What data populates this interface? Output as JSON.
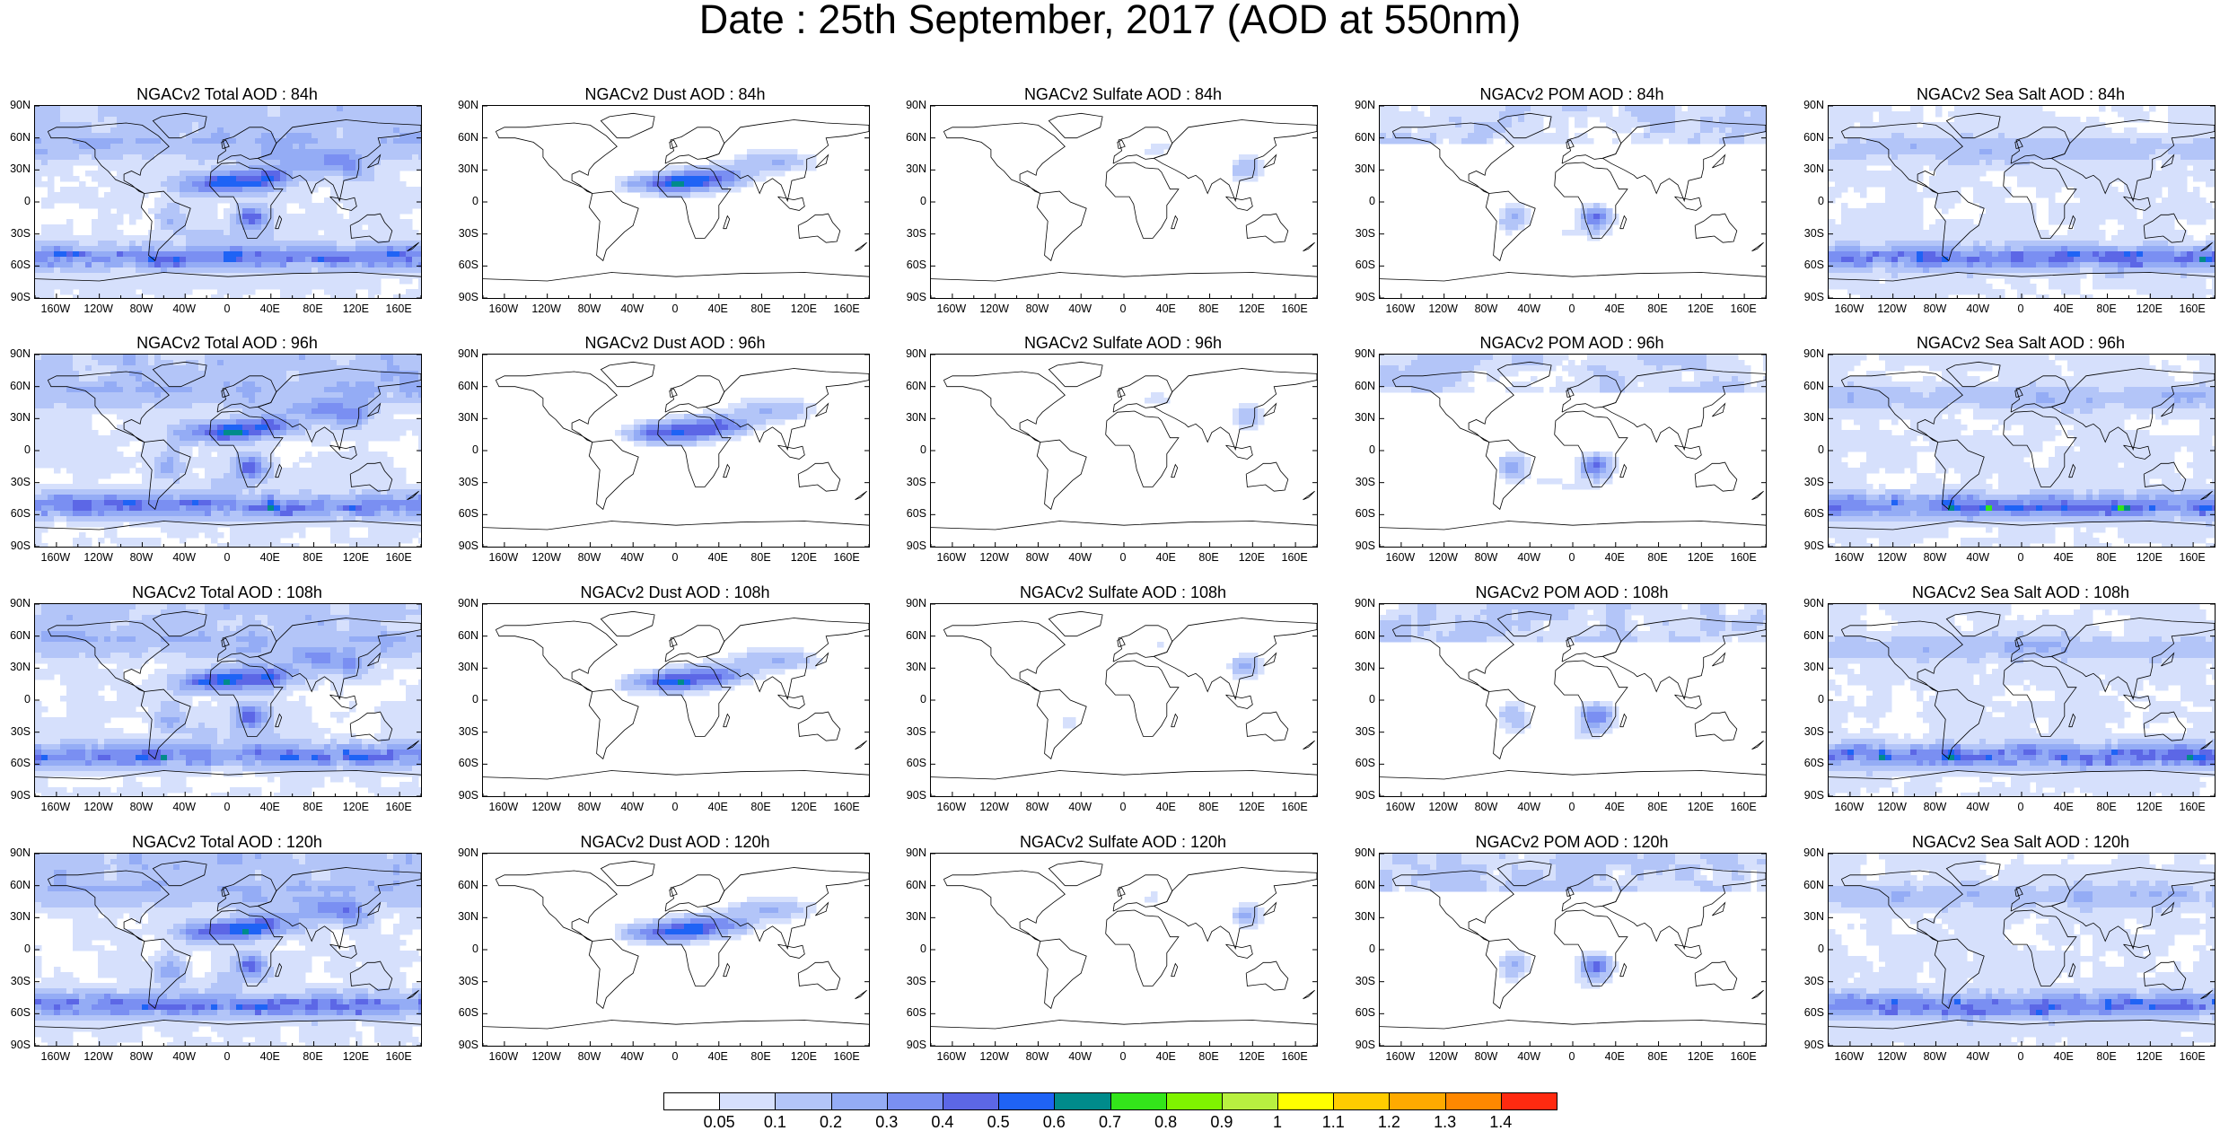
{
  "page": {
    "title": "Date : 25th September, 2017 (AOD at 550nm)"
  },
  "lat_ticks": [
    "90N",
    "60N",
    "30N",
    "0",
    "30S",
    "60S",
    "90S"
  ],
  "lon_ticks": [
    "160W",
    "120W",
    "80W",
    "40W",
    "0",
    "40E",
    "80E",
    "120E",
    "160E"
  ],
  "panels": [
    {
      "title": "NGACv2 Total AOD : 84h",
      "species": "total",
      "hour": 84
    },
    {
      "title": "NGACv2 Dust AOD : 84h",
      "species": "dust",
      "hour": 84
    },
    {
      "title": "NGACv2 Sulfate AOD : 84h",
      "species": "sulfate",
      "hour": 84
    },
    {
      "title": "NGACv2 POM AOD : 84h",
      "species": "pom",
      "hour": 84
    },
    {
      "title": "NGACv2 Sea Salt AOD : 84h",
      "species": "seasalt",
      "hour": 84
    },
    {
      "title": "NGACv2 Total AOD : 96h",
      "species": "total",
      "hour": 96
    },
    {
      "title": "NGACv2 Dust AOD : 96h",
      "species": "dust",
      "hour": 96
    },
    {
      "title": "NGACv2 Sulfate AOD : 96h",
      "species": "sulfate",
      "hour": 96
    },
    {
      "title": "NGACv2 POM AOD : 96h",
      "species": "pom",
      "hour": 96
    },
    {
      "title": "NGACv2 Sea Salt AOD : 96h",
      "species": "seasalt",
      "hour": 96
    },
    {
      "title": "NGACv2 Total AOD : 108h",
      "species": "total",
      "hour": 108
    },
    {
      "title": "NGACv2 Dust AOD : 108h",
      "species": "dust",
      "hour": 108
    },
    {
      "title": "NGACv2 Sulfate AOD : 108h",
      "species": "sulfate",
      "hour": 108
    },
    {
      "title": "NGACv2 POM AOD : 108h",
      "species": "pom",
      "hour": 108
    },
    {
      "title": "NGACv2 Sea Salt AOD : 108h",
      "species": "seasalt",
      "hour": 108
    },
    {
      "title": "NGACv2 Total AOD : 120h",
      "species": "total",
      "hour": 120
    },
    {
      "title": "NGACv2 Dust AOD : 120h",
      "species": "dust",
      "hour": 120
    },
    {
      "title": "NGACv2 Sulfate AOD : 120h",
      "species": "sulfate",
      "hour": 120
    },
    {
      "title": "NGACv2 POM AOD : 120h",
      "species": "pom",
      "hour": 120
    },
    {
      "title": "NGACv2 Sea Salt  AOD : 120h",
      "species": "seasalt",
      "hour": 120
    }
  ],
  "colorbar": {
    "labels": [
      "0.05",
      "0.1",
      "0.2",
      "0.3",
      "0.4",
      "0.5",
      "0.6",
      "0.7",
      "0.8",
      "0.9",
      "1",
      "1.1",
      "1.2",
      "1.3",
      "1.4"
    ],
    "colors": [
      "#ffffff",
      "#d6e0fc",
      "#b3c5f8",
      "#94acf5",
      "#7a8ff2",
      "#5c67e6",
      "#1f63f5",
      "#008b8b",
      "#33e51a",
      "#7ff300",
      "#b8f040",
      "#ffff00",
      "#ffcc00",
      "#ffaa00",
      "#ff8800",
      "#ff2a10"
    ]
  }
}
